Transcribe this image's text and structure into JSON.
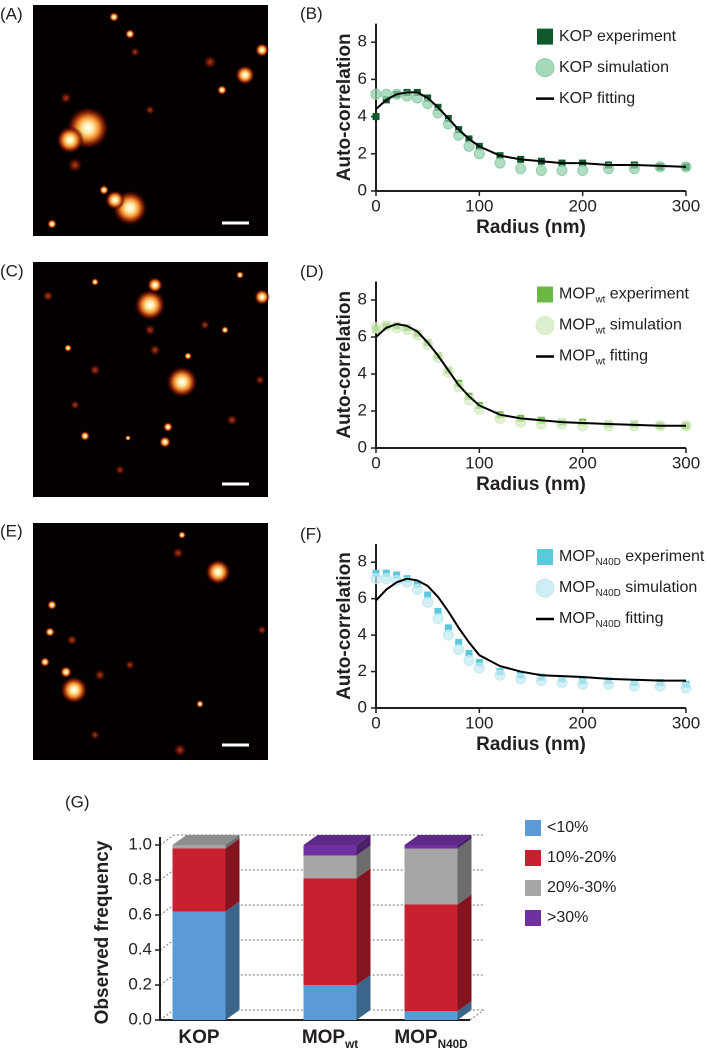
{
  "image_panels": [
    {
      "label": "(A)"
    },
    {
      "label": "(C)"
    },
    {
      "label": "(E)"
    }
  ],
  "chart_data": [
    {
      "type": "line",
      "panel": "(B)",
      "xlabel": "Radius (nm)",
      "ylabel": "Auto-correlation",
      "xlim": [
        0,
        300
      ],
      "xticks": [
        0,
        100,
        200,
        300
      ],
      "ylim": [
        0,
        9
      ],
      "yticks": [
        0,
        2,
        4,
        6,
        8
      ],
      "legend": "upper right",
      "x": [
        0,
        10,
        20,
        30,
        40,
        50,
        60,
        70,
        80,
        90,
        100,
        120,
        140,
        160,
        180,
        200,
        225,
        250,
        275,
        300
      ],
      "series": [
        {
          "name": "KOP experiment",
          "marker": "square",
          "color": "#0f5a2a",
          "values": [
            4.0,
            4.9,
            5.2,
            5.3,
            5.3,
            5.0,
            4.5,
            3.9,
            3.3,
            2.8,
            2.4,
            1.9,
            1.7,
            1.6,
            1.5,
            1.5,
            1.4,
            1.4,
            1.3,
            1.3
          ]
        },
        {
          "name": "KOP simulation",
          "marker": "circle",
          "color": "#8fcfa8",
          "values": [
            5.2,
            5.2,
            5.2,
            5.1,
            5.0,
            4.7,
            4.2,
            3.6,
            3.0,
            2.4,
            2.0,
            1.5,
            1.2,
            1.1,
            1.1,
            1.1,
            1.2,
            1.2,
            1.3,
            1.3
          ]
        },
        {
          "name": "KOP fitting",
          "marker": "none",
          "color": "#000000",
          "values": [
            4.4,
            4.9,
            5.2,
            5.3,
            5.3,
            5.0,
            4.5,
            3.9,
            3.3,
            2.8,
            2.4,
            1.9,
            1.7,
            1.6,
            1.5,
            1.5,
            1.4,
            1.4,
            1.35,
            1.3
          ]
        }
      ]
    },
    {
      "type": "line",
      "panel": "(D)",
      "xlabel": "Radius (nm)",
      "ylabel": "Auto-correlation",
      "xlim": [
        0,
        300
      ],
      "xticks": [
        0,
        100,
        200,
        300
      ],
      "ylim": [
        0,
        9
      ],
      "yticks": [
        0,
        2,
        4,
        6,
        8
      ],
      "legend": "upper right",
      "x": [
        0,
        10,
        20,
        30,
        40,
        50,
        60,
        70,
        80,
        90,
        100,
        120,
        140,
        160,
        180,
        200,
        225,
        250,
        275,
        300
      ],
      "series": [
        {
          "name": [
            "MOP",
            "wt",
            " experiment"
          ],
          "marker": "square",
          "color": "#6cb844",
          "values": [
            6.4,
            6.6,
            6.6,
            6.5,
            6.2,
            5.7,
            5.0,
            4.2,
            3.5,
            2.8,
            2.3,
            1.8,
            1.6,
            1.5,
            1.4,
            1.4,
            1.3,
            1.3,
            1.2,
            1.2
          ]
        },
        {
          "name": [
            "MOP",
            "wt",
            " simulation"
          ],
          "marker": "circle",
          "color": "#d5ebc2",
          "values": [
            6.5,
            6.6,
            6.5,
            6.4,
            6.1,
            5.6,
            4.9,
            4.1,
            3.3,
            2.6,
            2.1,
            1.6,
            1.4,
            1.3,
            1.3,
            1.2,
            1.2,
            1.2,
            1.2,
            1.2
          ]
        },
        {
          "name": [
            "MOP",
            "wt",
            " fitting"
          ],
          "marker": "none",
          "color": "#000000",
          "values": [
            6.0,
            6.5,
            6.7,
            6.6,
            6.3,
            5.7,
            5.0,
            4.2,
            3.4,
            2.8,
            2.3,
            1.8,
            1.6,
            1.5,
            1.4,
            1.35,
            1.3,
            1.25,
            1.2,
            1.2
          ]
        }
      ]
    },
    {
      "type": "line",
      "panel": "(F)",
      "xlabel": "Radius (nm)",
      "ylabel": "Auto-correlation",
      "xlim": [
        0,
        300
      ],
      "xticks": [
        0,
        100,
        200,
        300
      ],
      "ylim": [
        0,
        9
      ],
      "yticks": [
        0,
        2,
        4,
        6,
        8
      ],
      "legend": "upper right",
      "x": [
        0,
        10,
        20,
        30,
        40,
        50,
        60,
        70,
        80,
        90,
        100,
        120,
        140,
        160,
        180,
        200,
        225,
        250,
        275,
        300
      ],
      "series": [
        {
          "name": [
            "MOP",
            "N40D",
            " experiment"
          ],
          "marker": "square",
          "color": "#5bc8dc",
          "values": [
            7.4,
            7.4,
            7.3,
            7.1,
            6.8,
            6.2,
            5.3,
            4.4,
            3.6,
            3.0,
            2.5,
            2.0,
            1.8,
            1.7,
            1.6,
            1.5,
            1.5,
            1.4,
            1.4,
            1.3
          ]
        },
        {
          "name": [
            "MOP",
            "N40D",
            " simulation"
          ],
          "marker": "circle",
          "color": "#c2e9f1",
          "values": [
            7.1,
            7.1,
            7.0,
            6.9,
            6.5,
            5.8,
            4.9,
            4.0,
            3.2,
            2.6,
            2.2,
            1.8,
            1.6,
            1.5,
            1.4,
            1.3,
            1.3,
            1.2,
            1.2,
            1.1
          ]
        },
        {
          "name": [
            "MOP",
            "N40D",
            " fitting"
          ],
          "marker": "none",
          "color": "#000000",
          "values": [
            5.9,
            6.5,
            6.9,
            7.1,
            7.0,
            6.7,
            6.1,
            5.3,
            4.4,
            3.6,
            2.9,
            2.3,
            2.0,
            1.8,
            1.75,
            1.7,
            1.6,
            1.55,
            1.5,
            1.5
          ]
        }
      ]
    },
    {
      "type": "bar3d",
      "panel": "(G)",
      "ylabel": "Observed frequency",
      "stacked": true,
      "grid": true,
      "ylim": [
        0,
        1
      ],
      "yticks": [
        {
          "value": 0,
          "label": "0.0"
        },
        0.2,
        0.4,
        0.6,
        0.8,
        {
          "value": 1,
          "label": "1.0"
        }
      ],
      "categories": [
        "KOP",
        [
          "MOP",
          "wt"
        ],
        [
          "MOP",
          "N40D"
        ]
      ],
      "series": [
        {
          "name": "<10%",
          "color": "#5b9bd5",
          "values": [
            0.62,
            0.2,
            0.05
          ]
        },
        {
          "name": "10%-20%",
          "color": "#c8202f",
          "values": [
            0.36,
            0.61,
            0.61
          ]
        },
        {
          "name": "20%-30%",
          "color": "#a6a6a6",
          "values": [
            0.02,
            0.13,
            0.32
          ]
        },
        {
          "name": ">30%",
          "color": "#7030a0",
          "values": [
            0,
            0.06,
            0.02
          ]
        }
      ]
    }
  ]
}
